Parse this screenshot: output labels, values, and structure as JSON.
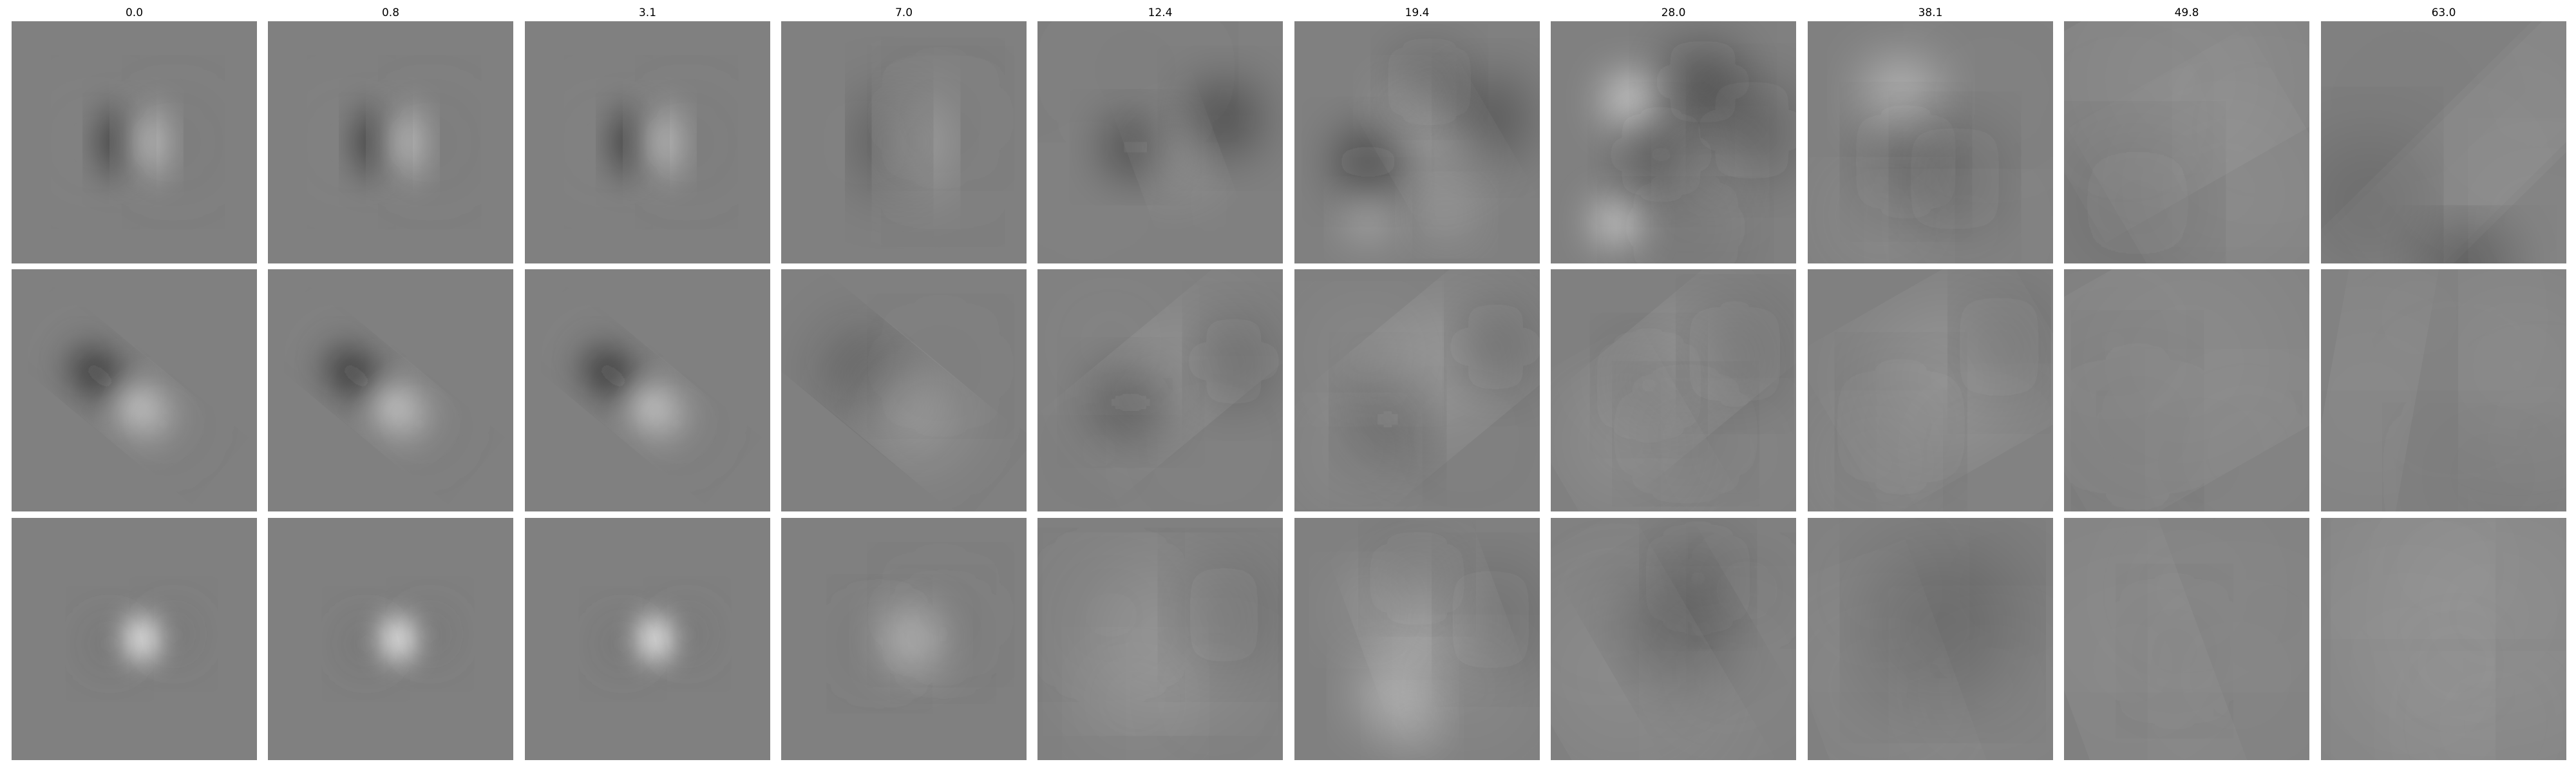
{
  "column_titles": [
    "0.0",
    "0.8",
    "3.1",
    "7.0",
    "12.4",
    "19.4",
    "28.0",
    "38.1",
    "49.8",
    "63.0"
  ],
  "colormap": "grayscale",
  "colors": {
    "background": "#ffffff",
    "neutral": "#808080",
    "dark": "#000000",
    "light": "#ffffff"
  },
  "rows": 3,
  "columns": 10
}
